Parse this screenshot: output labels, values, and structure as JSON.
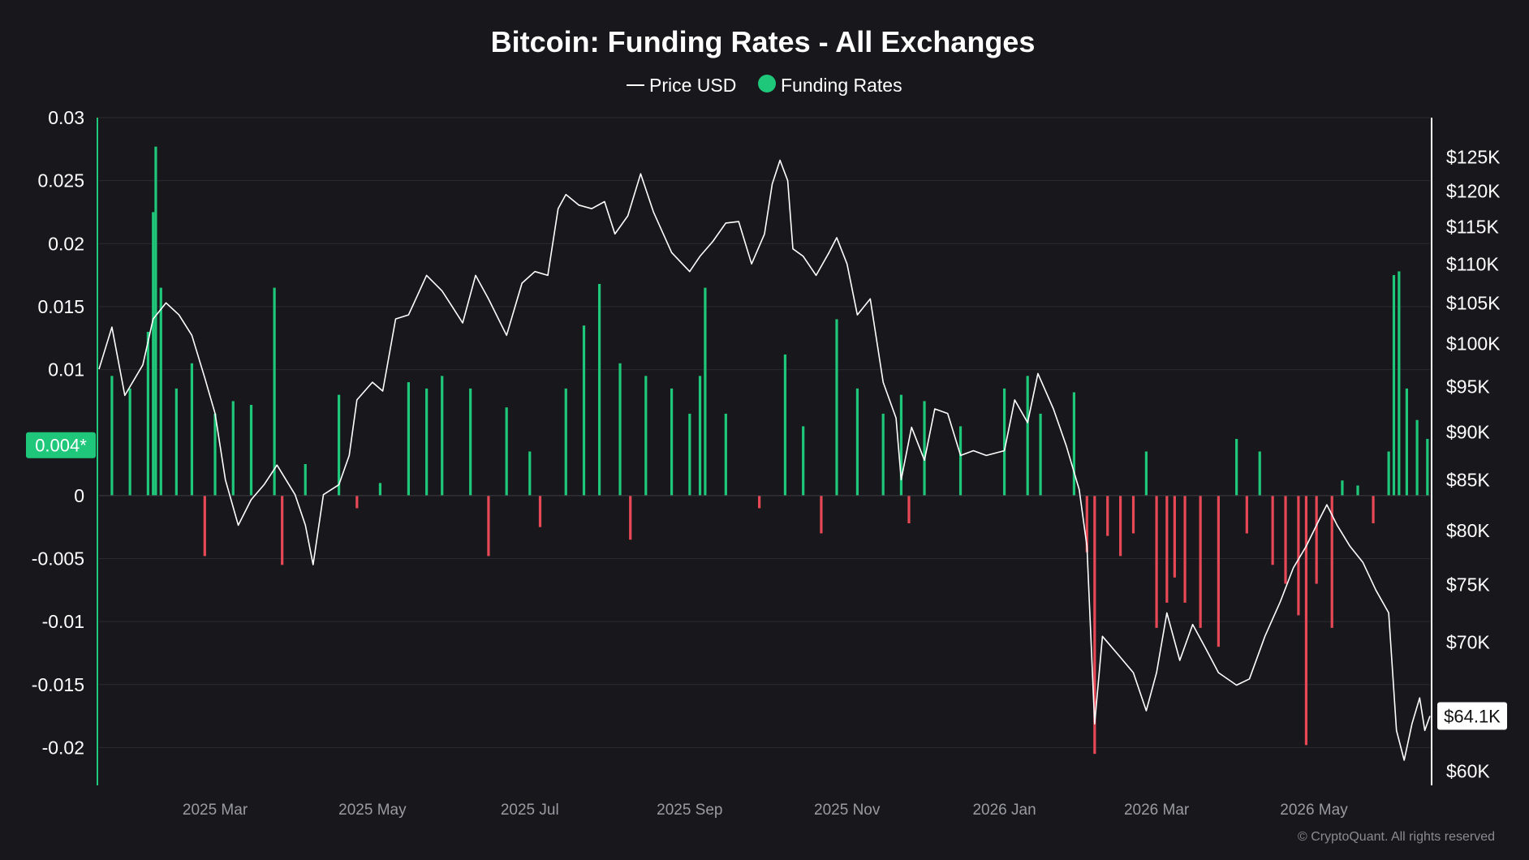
{
  "chart_data": {
    "type": "bar",
    "title": "Bitcoin: Funding Rates - All Exchanges",
    "legend": [
      {
        "name": "Price USD",
        "marker": "line",
        "color": "#ffffff"
      },
      {
        "name": "Funding Rates",
        "marker": "dot",
        "color": "#1fc77a"
      }
    ],
    "legend_placement": "top-center",
    "x_axis": {
      "start": "2025-01-15",
      "end": "2026-06-15",
      "ticks": [
        {
          "date": "2025-03-01",
          "label": "2025 Mar"
        },
        {
          "date": "2025-05-01",
          "label": "2025 May"
        },
        {
          "date": "2025-07-01",
          "label": "2025 Jul"
        },
        {
          "date": "2025-09-01",
          "label": "2025 Sep"
        },
        {
          "date": "2025-11-01",
          "label": "2025 Nov"
        },
        {
          "date": "2026-01-01",
          "label": "2026 Jan"
        },
        {
          "date": "2026-03-01",
          "label": "2026 Mar"
        },
        {
          "date": "2026-05-01",
          "label": "2026 May"
        }
      ]
    },
    "y_left": {
      "ylim": [
        -0.023,
        0.03
      ],
      "ticks": [
        {
          "value": 0.03,
          "label": "0.03"
        },
        {
          "value": 0.025,
          "label": "0.025"
        },
        {
          "value": 0.02,
          "label": "0.02"
        },
        {
          "value": 0.015,
          "label": "0.015"
        },
        {
          "value": 0.01,
          "label": "0.01"
        },
        {
          "value": 0,
          "label": "0"
        },
        {
          "value": -0.005,
          "label": "-0.005"
        },
        {
          "value": -0.01,
          "label": "-0.01"
        },
        {
          "value": -0.015,
          "label": "-0.015"
        },
        {
          "value": -0.02,
          "label": "-0.02"
        }
      ]
    },
    "y_right": {
      "scale": "log",
      "ylim": [
        59000,
        131000
      ],
      "ticks": [
        {
          "value": 125000,
          "label": "$125K"
        },
        {
          "value": 120000,
          "label": "$120K"
        },
        {
          "value": 115000,
          "label": "$115K"
        },
        {
          "value": 110000,
          "label": "$110K"
        },
        {
          "value": 105000,
          "label": "$105K"
        },
        {
          "value": 100000,
          "label": "$100K"
        },
        {
          "value": 95000,
          "label": "$95K"
        },
        {
          "value": 90000,
          "label": "$90K"
        },
        {
          "value": 85000,
          "label": "$85K"
        },
        {
          "value": 80000,
          "label": "$80K"
        },
        {
          "value": 75000,
          "label": "$75K"
        },
        {
          "value": 70000,
          "label": "$70K"
        },
        {
          "value": 60000,
          "label": "$60K"
        }
      ]
    },
    "current_funding": {
      "value": 0.004,
      "label": "0.004*",
      "color": "#1fc77a"
    },
    "current_price": {
      "value": 64100,
      "label": "$64.1K"
    },
    "grid": true,
    "series": [
      {
        "name": "Funding Rates",
        "axis": "left",
        "type": "bar",
        "positive_color": "#1fc77a",
        "negative_color": "#e84855",
        "points": [
          {
            "x": "2025-01-20",
            "y": 0.0095
          },
          {
            "x": "2025-01-27",
            "y": 0.0085
          },
          {
            "x": "2025-02-03",
            "y": 0.013
          },
          {
            "x": "2025-02-05",
            "y": 0.0225
          },
          {
            "x": "2025-02-06",
            "y": 0.0277
          },
          {
            "x": "2025-02-08",
            "y": 0.0165
          },
          {
            "x": "2025-02-14",
            "y": 0.0085
          },
          {
            "x": "2025-02-20",
            "y": 0.0105
          },
          {
            "x": "2025-02-25",
            "y": -0.0048
          },
          {
            "x": "2025-03-01",
            "y": 0.0065
          },
          {
            "x": "2025-03-08",
            "y": 0.0075
          },
          {
            "x": "2025-03-15",
            "y": 0.0072
          },
          {
            "x": "2025-03-24",
            "y": 0.0165
          },
          {
            "x": "2025-03-27",
            "y": -0.0055
          },
          {
            "x": "2025-04-05",
            "y": 0.0025
          },
          {
            "x": "2025-04-18",
            "y": 0.008
          },
          {
            "x": "2025-04-25",
            "y": -0.001
          },
          {
            "x": "2025-05-04",
            "y": 0.001
          },
          {
            "x": "2025-05-15",
            "y": 0.009
          },
          {
            "x": "2025-05-22",
            "y": 0.0085
          },
          {
            "x": "2025-05-28",
            "y": 0.0095
          },
          {
            "x": "2025-06-08",
            "y": 0.0085
          },
          {
            "x": "2025-06-15",
            "y": -0.0048
          },
          {
            "x": "2025-06-22",
            "y": 0.007
          },
          {
            "x": "2025-07-01",
            "y": 0.0035
          },
          {
            "x": "2025-07-05",
            "y": -0.0025
          },
          {
            "x": "2025-07-15",
            "y": 0.0085
          },
          {
            "x": "2025-07-22",
            "y": 0.0135
          },
          {
            "x": "2025-07-28",
            "y": 0.0168
          },
          {
            "x": "2025-08-05",
            "y": 0.0105
          },
          {
            "x": "2025-08-09",
            "y": -0.0035
          },
          {
            "x": "2025-08-15",
            "y": 0.0095
          },
          {
            "x": "2025-08-25",
            "y": 0.0085
          },
          {
            "x": "2025-09-01",
            "y": 0.0065
          },
          {
            "x": "2025-09-05",
            "y": 0.0095
          },
          {
            "x": "2025-09-07",
            "y": 0.0165
          },
          {
            "x": "2025-09-15",
            "y": 0.0065
          },
          {
            "x": "2025-09-28",
            "y": -0.001
          },
          {
            "x": "2025-10-08",
            "y": 0.0112
          },
          {
            "x": "2025-10-15",
            "y": 0.0055
          },
          {
            "x": "2025-10-22",
            "y": -0.003
          },
          {
            "x": "2025-10-28",
            "y": 0.014
          },
          {
            "x": "2025-11-05",
            "y": 0.0085
          },
          {
            "x": "2025-11-15",
            "y": 0.0065
          },
          {
            "x": "2025-11-22",
            "y": 0.008
          },
          {
            "x": "2025-11-25",
            "y": -0.0022
          },
          {
            "x": "2025-12-01",
            "y": 0.0075
          },
          {
            "x": "2025-12-15",
            "y": 0.0055
          },
          {
            "x": "2026-01-01",
            "y": 0.0085
          },
          {
            "x": "2026-01-10",
            "y": 0.0095
          },
          {
            "x": "2026-01-15",
            "y": 0.0065
          },
          {
            "x": "2026-01-28",
            "y": 0.0082
          },
          {
            "x": "2026-02-02",
            "y": -0.0045
          },
          {
            "x": "2026-02-05",
            "y": -0.0205
          },
          {
            "x": "2026-02-10",
            "y": -0.0032
          },
          {
            "x": "2026-02-15",
            "y": -0.0048
          },
          {
            "x": "2026-02-20",
            "y": -0.003
          },
          {
            "x": "2026-02-25",
            "y": 0.0035
          },
          {
            "x": "2026-03-01",
            "y": -0.0105
          },
          {
            "x": "2026-03-05",
            "y": -0.0085
          },
          {
            "x": "2026-03-08",
            "y": -0.0065
          },
          {
            "x": "2026-03-12",
            "y": -0.0085
          },
          {
            "x": "2026-03-18",
            "y": -0.0105
          },
          {
            "x": "2026-03-25",
            "y": -0.012
          },
          {
            "x": "2026-04-01",
            "y": 0.0045
          },
          {
            "x": "2026-04-05",
            "y": -0.003
          },
          {
            "x": "2026-04-10",
            "y": 0.0035
          },
          {
            "x": "2026-04-15",
            "y": -0.0055
          },
          {
            "x": "2026-04-20",
            "y": -0.007
          },
          {
            "x": "2026-04-25",
            "y": -0.0095
          },
          {
            "x": "2026-04-28",
            "y": -0.0198
          },
          {
            "x": "2026-05-02",
            "y": -0.007
          },
          {
            "x": "2026-05-08",
            "y": -0.0105
          },
          {
            "x": "2026-05-12",
            "y": 0.0012
          },
          {
            "x": "2026-05-18",
            "y": 0.0008
          },
          {
            "x": "2026-05-24",
            "y": -0.0022
          },
          {
            "x": "2026-05-30",
            "y": 0.0035
          },
          {
            "x": "2026-06-01",
            "y": 0.0175
          },
          {
            "x": "2026-06-03",
            "y": 0.0178
          },
          {
            "x": "2026-06-06",
            "y": 0.0085
          },
          {
            "x": "2026-06-10",
            "y": 0.006
          },
          {
            "x": "2026-06-14",
            "y": 0.0045
          }
        ]
      },
      {
        "name": "Price USD",
        "axis": "right",
        "type": "line",
        "color": "#ffffff",
        "points": [
          {
            "x": "2025-01-15",
            "y": 97000
          },
          {
            "x": "2025-01-20",
            "y": 102000
          },
          {
            "x": "2025-01-25",
            "y": 94000
          },
          {
            "x": "2025-02-01",
            "y": 97500
          },
          {
            "x": "2025-02-05",
            "y": 103000
          },
          {
            "x": "2025-02-10",
            "y": 105000
          },
          {
            "x": "2025-02-15",
            "y": 103500
          },
          {
            "x": "2025-02-20",
            "y": 101000
          },
          {
            "x": "2025-02-25",
            "y": 96000
          },
          {
            "x": "2025-03-01",
            "y": 92000
          },
          {
            "x": "2025-03-05",
            "y": 85000
          },
          {
            "x": "2025-03-10",
            "y": 80500
          },
          {
            "x": "2025-03-15",
            "y": 83000
          },
          {
            "x": "2025-03-20",
            "y": 84500
          },
          {
            "x": "2025-03-25",
            "y": 86500
          },
          {
            "x": "2025-04-01",
            "y": 83500
          },
          {
            "x": "2025-04-05",
            "y": 80500
          },
          {
            "x": "2025-04-08",
            "y": 76800
          },
          {
            "x": "2025-04-12",
            "y": 83500
          },
          {
            "x": "2025-04-18",
            "y": 84500
          },
          {
            "x": "2025-04-22",
            "y": 87500
          },
          {
            "x": "2025-04-25",
            "y": 93500
          },
          {
            "x": "2025-05-01",
            "y": 95500
          },
          {
            "x": "2025-05-05",
            "y": 94500
          },
          {
            "x": "2025-05-10",
            "y": 103000
          },
          {
            "x": "2025-05-15",
            "y": 103500
          },
          {
            "x": "2025-05-22",
            "y": 108500
          },
          {
            "x": "2025-05-28",
            "y": 106500
          },
          {
            "x": "2025-06-01",
            "y": 104500
          },
          {
            "x": "2025-06-05",
            "y": 102500
          },
          {
            "x": "2025-06-10",
            "y": 108500
          },
          {
            "x": "2025-06-15",
            "y": 105500
          },
          {
            "x": "2025-06-22",
            "y": 101000
          },
          {
            "x": "2025-06-28",
            "y": 107500
          },
          {
            "x": "2025-07-03",
            "y": 109000
          },
          {
            "x": "2025-07-08",
            "y": 108500
          },
          {
            "x": "2025-07-12",
            "y": 117500
          },
          {
            "x": "2025-07-15",
            "y": 119500
          },
          {
            "x": "2025-07-20",
            "y": 118000
          },
          {
            "x": "2025-07-25",
            "y": 117500
          },
          {
            "x": "2025-07-30",
            "y": 118500
          },
          {
            "x": "2025-08-03",
            "y": 114000
          },
          {
            "x": "2025-08-08",
            "y": 116500
          },
          {
            "x": "2025-08-13",
            "y": 122500
          },
          {
            "x": "2025-08-18",
            "y": 117000
          },
          {
            "x": "2025-08-25",
            "y": 111500
          },
          {
            "x": "2025-09-01",
            "y": 109000
          },
          {
            "x": "2025-09-05",
            "y": 111000
          },
          {
            "x": "2025-09-10",
            "y": 113000
          },
          {
            "x": "2025-09-15",
            "y": 115500
          },
          {
            "x": "2025-09-20",
            "y": 115700
          },
          {
            "x": "2025-09-25",
            "y": 110000
          },
          {
            "x": "2025-09-30",
            "y": 114000
          },
          {
            "x": "2025-10-03",
            "y": 121000
          },
          {
            "x": "2025-10-06",
            "y": 124500
          },
          {
            "x": "2025-10-09",
            "y": 121500
          },
          {
            "x": "2025-10-11",
            "y": 112000
          },
          {
            "x": "2025-10-15",
            "y": 111000
          },
          {
            "x": "2025-10-20",
            "y": 108500
          },
          {
            "x": "2025-10-25",
            "y": 111500
          },
          {
            "x": "2025-10-28",
            "y": 113500
          },
          {
            "x": "2025-11-01",
            "y": 110000
          },
          {
            "x": "2025-11-05",
            "y": 103500
          },
          {
            "x": "2025-11-10",
            "y": 105500
          },
          {
            "x": "2025-11-15",
            "y": 95500
          },
          {
            "x": "2025-11-20",
            "y": 91500
          },
          {
            "x": "2025-11-22",
            "y": 85000
          },
          {
            "x": "2025-11-26",
            "y": 90500
          },
          {
            "x": "2025-12-01",
            "y": 87000
          },
          {
            "x": "2025-12-05",
            "y": 92500
          },
          {
            "x": "2025-12-10",
            "y": 92000
          },
          {
            "x": "2025-12-15",
            "y": 87500
          },
          {
            "x": "2025-12-20",
            "y": 88000
          },
          {
            "x": "2025-12-25",
            "y": 87500
          },
          {
            "x": "2026-01-01",
            "y": 88000
          },
          {
            "x": "2026-01-05",
            "y": 93500
          },
          {
            "x": "2026-01-10",
            "y": 91000
          },
          {
            "x": "2026-01-14",
            "y": 96500
          },
          {
            "x": "2026-01-20",
            "y": 92500
          },
          {
            "x": "2026-01-25",
            "y": 88500
          },
          {
            "x": "2026-01-30",
            "y": 84000
          },
          {
            "x": "2026-02-02",
            "y": 78500
          },
          {
            "x": "2026-02-05",
            "y": 63500
          },
          {
            "x": "2026-02-08",
            "y": 70500
          },
          {
            "x": "2026-02-14",
            "y": 69000
          },
          {
            "x": "2026-02-20",
            "y": 67500
          },
          {
            "x": "2026-02-25",
            "y": 64500
          },
          {
            "x": "2026-03-01",
            "y": 67500
          },
          {
            "x": "2026-03-05",
            "y": 72500
          },
          {
            "x": "2026-03-10",
            "y": 68500
          },
          {
            "x": "2026-03-15",
            "y": 71500
          },
          {
            "x": "2026-03-20",
            "y": 69500
          },
          {
            "x": "2026-03-25",
            "y": 67500
          },
          {
            "x": "2026-04-01",
            "y": 66500
          },
          {
            "x": "2026-04-06",
            "y": 67000
          },
          {
            "x": "2026-04-12",
            "y": 70500
          },
          {
            "x": "2026-04-18",
            "y": 73500
          },
          {
            "x": "2026-04-23",
            "y": 76500
          },
          {
            "x": "2026-04-28",
            "y": 78500
          },
          {
            "x": "2026-05-03",
            "y": 81000
          },
          {
            "x": "2026-05-06",
            "y": 82500
          },
          {
            "x": "2026-05-10",
            "y": 80500
          },
          {
            "x": "2026-05-15",
            "y": 78500
          },
          {
            "x": "2026-05-20",
            "y": 77000
          },
          {
            "x": "2026-05-25",
            "y": 74500
          },
          {
            "x": "2026-05-30",
            "y": 72500
          },
          {
            "x": "2026-06-02",
            "y": 63000
          },
          {
            "x": "2026-06-05",
            "y": 60800
          },
          {
            "x": "2026-06-08",
            "y": 63500
          },
          {
            "x": "2026-06-11",
            "y": 65500
          },
          {
            "x": "2026-06-13",
            "y": 63000
          },
          {
            "x": "2026-06-15",
            "y": 64100
          }
        ]
      }
    ]
  },
  "footer": {
    "copyright": "© CryptoQuant. All rights reserved"
  },
  "colors": {
    "background": "#18181c",
    "grid": "#2a2a30",
    "axis_text": "#ffffff",
    "x_tick_text": "#9a9aa2",
    "left_axis_line": "#1fc77a"
  }
}
